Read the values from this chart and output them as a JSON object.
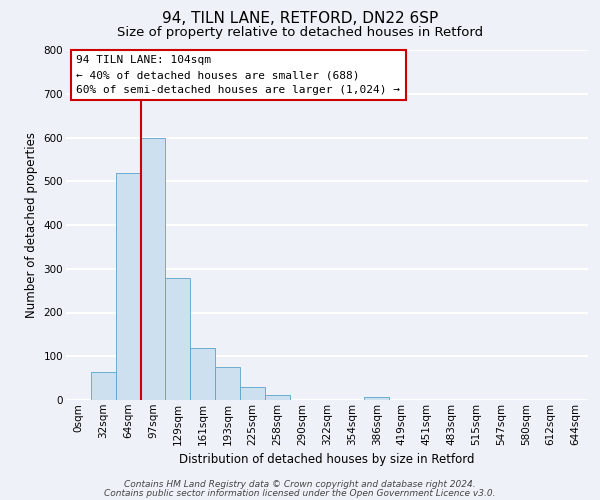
{
  "title": "94, TILN LANE, RETFORD, DN22 6SP",
  "subtitle": "Size of property relative to detached houses in Retford",
  "xlabel": "Distribution of detached houses by size in Retford",
  "ylabel": "Number of detached properties",
  "bar_labels": [
    "0sqm",
    "32sqm",
    "64sqm",
    "97sqm",
    "129sqm",
    "161sqm",
    "193sqm",
    "225sqm",
    "258sqm",
    "290sqm",
    "322sqm",
    "354sqm",
    "386sqm",
    "419sqm",
    "451sqm",
    "483sqm",
    "515sqm",
    "547sqm",
    "580sqm",
    "612sqm",
    "644sqm"
  ],
  "bar_values": [
    0,
    65,
    520,
    600,
    280,
    120,
    75,
    30,
    12,
    0,
    0,
    0,
    8,
    0,
    0,
    0,
    0,
    0,
    0,
    0,
    0
  ],
  "bar_color": "#cce0f0",
  "bar_edge_color": "#5ba3c9",
  "ylim": [
    0,
    800
  ],
  "yticks": [
    0,
    100,
    200,
    300,
    400,
    500,
    600,
    700,
    800
  ],
  "vline_x": 3.0,
  "vline_color": "#cc0000",
  "annotation_text": "94 TILN LANE: 104sqm\n← 40% of detached houses are smaller (688)\n60% of semi-detached houses are larger (1,024) →",
  "annotation_box_color": "#ffffff",
  "annotation_box_edge": "#cc0000",
  "footer_line1": "Contains HM Land Registry data © Crown copyright and database right 2024.",
  "footer_line2": "Contains public sector information licensed under the Open Government Licence v3.0.",
  "background_color": "#eef2f8",
  "plot_bg_color": "#eef2f8",
  "grid_color": "#ffffff",
  "title_fontsize": 11,
  "subtitle_fontsize": 9.5,
  "axis_label_fontsize": 8.5,
  "tick_fontsize": 7.5,
  "footer_fontsize": 6.5
}
